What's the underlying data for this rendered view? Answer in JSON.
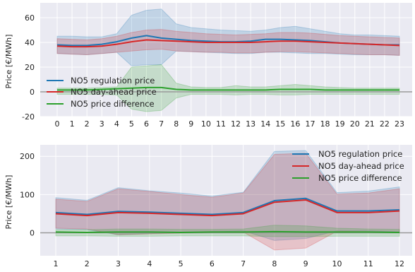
{
  "chart_data": [
    {
      "type": "line",
      "xlabel": "",
      "ylabel": "Price [€/MWh]",
      "x": [
        0,
        1,
        2,
        3,
        4,
        5,
        6,
        7,
        8,
        9,
        10,
        11,
        12,
        13,
        14,
        15,
        16,
        17,
        18,
        19,
        20,
        21,
        22,
        23
      ],
      "ylim": [
        -20,
        72
      ],
      "yticks": [
        -20,
        0,
        20,
        40,
        60
      ],
      "grid": true,
      "legend_position": "lower-left",
      "zero_line": true,
      "series": [
        {
          "name": "NO5 regulation price",
          "color": "#1f77b4",
          "values": [
            38,
            37.5,
            37.5,
            38.5,
            40.5,
            43.5,
            45.5,
            43.5,
            42.5,
            41.5,
            41,
            40.5,
            40.5,
            41,
            42.5,
            42.5,
            42,
            41.5,
            40.5,
            39.5,
            39,
            38.5,
            38,
            38
          ],
          "band": {
            "upper": [
              45,
              45,
              44.5,
              44.5,
              47,
              62,
              66,
              67,
              55,
              52,
              51,
              50,
              49.5,
              49,
              50,
              52,
              53,
              51,
              49,
              47,
              46,
              46,
              45.5,
              45
            ],
            "lower": [
              31,
              30.5,
              30,
              31,
              32,
              21,
              22,
              22,
              33,
              32.5,
              32,
              31.5,
              31,
              31,
              32,
              32,
              31.5,
              31,
              31,
              30.5,
              30,
              30,
              30,
              29.5
            ]
          }
        },
        {
          "name": "NO5 day-ahead price",
          "color": "#d62728",
          "values": [
            37,
            36.5,
            36.5,
            37,
            38.5,
            40.5,
            42,
            41.5,
            41,
            40.5,
            40,
            40,
            40,
            40,
            40.5,
            41,
            41,
            40.5,
            40,
            39.5,
            39,
            38.5,
            38,
            37.5
          ],
          "band": {
            "upper": [
              43,
              42.5,
              42,
              43,
              45,
              48,
              50,
              50.5,
              49,
              48,
              47,
              46.5,
              46,
              46.5,
              47,
              48,
              48,
              47.5,
              46.5,
              45.5,
              45,
              44.5,
              44,
              43.5
            ],
            "lower": [
              31,
              30.5,
              30,
              31,
              32,
              33,
              34,
              34.5,
              33,
              32.5,
              32,
              32,
              31.5,
              31.5,
              32,
              32.5,
              32.5,
              32,
              31.5,
              31,
              30.5,
              30,
              30,
              29.5
            ]
          }
        },
        {
          "name": "NO5 price difference",
          "color": "#2ca02c",
          "values": [
            1.5,
            1.5,
            1.5,
            2,
            2.5,
            3,
            3.5,
            3.5,
            2,
            1.5,
            1.5,
            1.5,
            1.5,
            1.5,
            1.5,
            2,
            2,
            2,
            1.5,
            1.5,
            1.5,
            1.5,
            1.5,
            1.5
          ],
          "band": {
            "upper": [
              3,
              3,
              3,
              3.5,
              4,
              20,
              21,
              22,
              7,
              4,
              3.5,
              3.5,
              5,
              4,
              4,
              5,
              6,
              5,
              4,
              3.5,
              3,
              3,
              3,
              3
            ],
            "lower": [
              -2,
              -2,
              -2,
              -2,
              -2.5,
              -14,
              -16,
              -15,
              -5,
              -2,
              -2,
              -2,
              -2.5,
              -2,
              -2,
              -2.5,
              -2.5,
              -2,
              -2,
              -2,
              -2,
              -2,
              -2,
              -2
            ]
          }
        }
      ]
    },
    {
      "type": "line",
      "xlabel": "",
      "ylabel": "Price [€/MWh]",
      "x": [
        1,
        2,
        3,
        4,
        5,
        6,
        7,
        8,
        9,
        10,
        11,
        12
      ],
      "ylim": [
        -60,
        230
      ],
      "yticks": [
        0,
        100,
        200
      ],
      "grid": true,
      "legend_position": "upper-right",
      "zero_line": true,
      "series": [
        {
          "name": "NO5 regulation price",
          "color": "#1f77b4",
          "values": [
            53,
            48,
            56,
            54,
            51,
            48,
            53,
            84,
            90,
            57,
            57,
            60
          ],
          "band": {
            "upper": [
              92,
              85,
              118,
              110,
              104,
              96,
              106,
              213,
              215,
              105,
              109,
              120
            ],
            "lower": [
              10,
              8,
              -5,
              -2,
              0,
              2,
              5,
              -20,
              -15,
              5,
              5,
              2
            ]
          }
        },
        {
          "name": "NO5 day-ahead price",
          "color": "#d62728",
          "values": [
            50,
            45,
            53,
            51,
            48,
            45,
            50,
            80,
            86,
            53,
            53,
            57
          ],
          "band": {
            "upper": [
              88,
              82,
              115,
              108,
              100,
              93,
              104,
              205,
              208,
              101,
              104,
              115
            ],
            "lower": [
              12,
              10,
              -5,
              -3,
              -1,
              0,
              2,
              -45,
              -40,
              4,
              3,
              0
            ]
          }
        },
        {
          "name": "NO5 price difference",
          "color": "#2ca02c",
          "values": [
            2,
            1,
            2,
            2,
            1,
            2,
            2,
            3,
            2,
            2,
            2,
            1
          ],
          "band": {
            "upper": [
              8,
              8,
              10,
              10,
              9,
              9,
              10,
              20,
              18,
              12,
              10,
              9
            ],
            "lower": [
              -8,
              -8,
              -9,
              -9,
              -8,
              -8,
              -8,
              -10,
              -10,
              -9,
              -9,
              -9
            ]
          }
        }
      ]
    }
  ]
}
